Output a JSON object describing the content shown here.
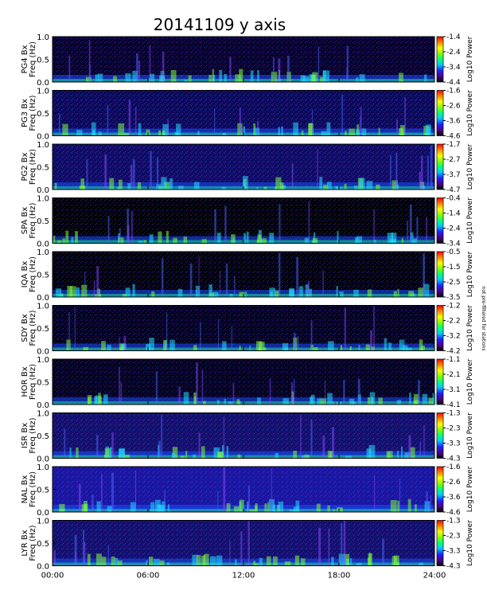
{
  "chart_data": {
    "type": "heatmap",
    "title": "20141109 y axis",
    "x_ticks": [
      "00:00",
      "06:00",
      "12:00",
      "18:00",
      "24:00"
    ],
    "xlim": [
      0,
      24
    ],
    "colorbar_label": "Log10 Power",
    "side_note": "not pre-filtered for stations",
    "panels": [
      {
        "station": "PG4",
        "ylabel_top": "PG4  Bx",
        "ylabel_bottom": "Freq (Hz)",
        "y_ticks": [
          "1.0",
          "0.5",
          "0.0"
        ],
        "ylim": [
          0,
          1.0
        ],
        "cb_ticks": [
          "-1.4",
          "-2.4",
          "-3.4",
          "-4.4"
        ],
        "clim": [
          -4.4,
          -1.4
        ],
        "background": "#07002a"
      },
      {
        "station": "PG3",
        "ylabel_top": "PG3  Bx",
        "ylabel_bottom": "Freq (Hz)",
        "y_ticks": [
          "1.0",
          "0.5",
          "0.0"
        ],
        "ylim": [
          0,
          1.0
        ],
        "cb_ticks": [
          "-1.6",
          "-2.6",
          "-3.6",
          "-4.6"
        ],
        "clim": [
          -4.6,
          -1.6
        ],
        "background": "#0c0a58"
      },
      {
        "station": "PG2",
        "ylabel_top": "PG2  Bx",
        "ylabel_bottom": "Freq (Hz)",
        "y_ticks": [
          "1.0",
          "0.5",
          "0.0"
        ],
        "ylim": [
          0,
          1.0
        ],
        "cb_ticks": [
          "-1.7",
          "-2.7",
          "-3.7",
          "-4.7"
        ],
        "clim": [
          -4.7,
          -1.7
        ],
        "background": "#100c62"
      },
      {
        "station": "SPA",
        "ylabel_top": "SPA  Bx",
        "ylabel_bottom": "Freq (Hz)",
        "y_ticks": [
          "1.0",
          "0.5",
          "0.0"
        ],
        "ylim": [
          0,
          1.0
        ],
        "cb_ticks": [
          "-0.4",
          "-1.4",
          "-2.4",
          "-3.4"
        ],
        "clim": [
          -3.4,
          -0.4
        ],
        "background": "#000000"
      },
      {
        "station": "IQA",
        "ylabel_top": "IQA  Bx",
        "ylabel_bottom": "Freq (Hz)",
        "y_ticks": [
          "1.0",
          "0.5",
          "0.0"
        ],
        "ylim": [
          0,
          1.0
        ],
        "cb_ticks": [
          "-0.5",
          "-1.5",
          "-2.5",
          "-3.5"
        ],
        "clim": [
          -3.5,
          -0.5
        ],
        "background": "#010008"
      },
      {
        "station": "SDY",
        "ylabel_top": "SDY  Bx",
        "ylabel_bottom": "Freq (Hz)",
        "y_ticks": [
          "1.0",
          "0.5",
          "0.0"
        ],
        "ylim": [
          0,
          1.0
        ],
        "cb_ticks": [
          "-1.2",
          "-2.2",
          "-3.2",
          "-4.2"
        ],
        "clim": [
          -4.2,
          -1.2
        ],
        "background": "#04001c"
      },
      {
        "station": "HOR",
        "ylabel_top": "HOR  Bx",
        "ylabel_bottom": "Freq (Hz)",
        "y_ticks": [
          "1.0",
          "0.5",
          "0.0"
        ],
        "ylim": [
          0,
          1.0
        ],
        "cb_ticks": [
          "-1.1",
          "-2.1",
          "-3.1",
          "-4.1"
        ],
        "clim": [
          -4.1,
          -1.1
        ],
        "background": "#03001c"
      },
      {
        "station": "ISR",
        "ylabel_top": "ISR  Bx",
        "ylabel_bottom": "Freq (Hz)",
        "y_ticks": [
          "1.0",
          "0.5",
          "0.0"
        ],
        "ylim": [
          0,
          1.0
        ],
        "cb_ticks": [
          "-1.3",
          "-2.3",
          "-3.3",
          "-4.3"
        ],
        "clim": [
          -4.3,
          -1.3
        ],
        "background": "#14106a"
      },
      {
        "station": "NAL",
        "ylabel_top": "NAL  Bx",
        "ylabel_bottom": "Freq (Hz)",
        "y_ticks": [
          "1.0",
          "0.5",
          "0.0"
        ],
        "ylim": [
          0,
          1.0
        ],
        "cb_ticks": [
          "-1.6",
          "-2.6",
          "-3.6",
          "-4.6"
        ],
        "clim": [
          -4.6,
          -1.6
        ],
        "background": "#1a16a0"
      },
      {
        "station": "LYR",
        "ylabel_top": "LYR  Bx",
        "ylabel_bottom": "Freq (Hz)",
        "y_ticks": [
          "1.0",
          "0.5",
          "0.0"
        ],
        "ylim": [
          0,
          1.0
        ],
        "cb_ticks": [
          "-1.3",
          "-2.3",
          "-3.3",
          "-4.3"
        ],
        "clim": [
          -4.3,
          -1.3
        ],
        "background": "#14106c"
      }
    ],
    "colormap": [
      "#000000",
      "#4b0082",
      "#2020ff",
      "#00c8ff",
      "#00ff80",
      "#80ff00",
      "#ffff00",
      "#ff8000",
      "#ff0000"
    ]
  }
}
